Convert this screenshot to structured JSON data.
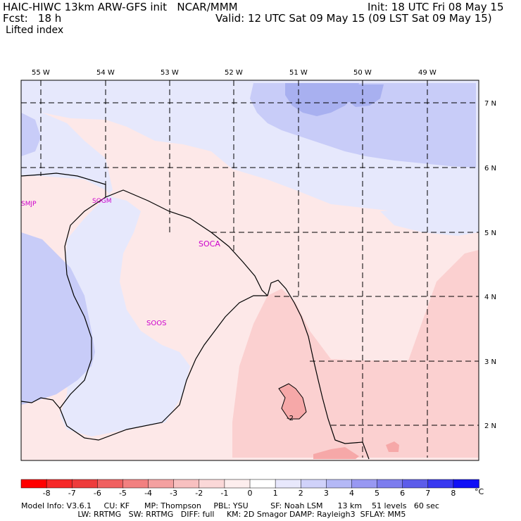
{
  "header": {
    "model": "HAIC-HIWC 13km ARW-GFS init   NCAR/MMM",
    "init": "Init: 18 UTC Fri 08 May 15",
    "fcst": "Fcst:   18 h",
    "valid": "Valid: 12 UTC Sat 09 May 15 (09 LST Sat 09 May 15)",
    "field": "Lifted index"
  },
  "map": {
    "lon_labels": [
      "55 W",
      "54 W",
      "53 W",
      "52 W",
      "51 W",
      "50 W",
      "49 W"
    ],
    "lat_labels": [
      "7 N",
      "6 N",
      "5 N",
      "4 N",
      "3 N",
      "2 N"
    ],
    "stations": [
      "SMJP",
      "SOGM",
      "SOCA",
      "SOOS"
    ],
    "contour_label": "-2",
    "colors": {
      "strong_blue": "#a8b0f0",
      "mid_blue": "#c8ccf8",
      "light_blue": "#e6e8fc",
      "light_pink": "#fde8e8",
      "pink": "#fbd0d0",
      "deeper_pink": "#f6a8a8",
      "border": "#000000",
      "station_text": "#cc00cc"
    }
  },
  "colorbar": {
    "colors": [
      "#ff0000",
      "#f62828",
      "#ee3c3c",
      "#f06060",
      "#f28080",
      "#f4a0a0",
      "#f8c0c0",
      "#fbd8d8",
      "#fdeeee",
      "#ffffff",
      "#e8e8fc",
      "#d0d2fa",
      "#b4b8f6",
      "#9898f2",
      "#7c7cee",
      "#5c5cea",
      "#3838f0",
      "#1010f6"
    ],
    "labels": [
      "-8",
      "-7",
      "-6",
      "-5",
      "-4",
      "-3",
      "-2",
      "-1",
      "0",
      "1",
      "2",
      "3",
      "4",
      "5",
      "6",
      "7",
      "8"
    ],
    "unit": "°C"
  },
  "footer": {
    "line1": "Model Info: V3.6.1     CU: KF      MP: Thompson     PBL: YSU         SF: Noah LSM      13 km    51 levels   60 sec",
    "line2": "                       LW: RRTMG   SW: RRTMG   DIFF: full     KM: 2D Smagor DAMP: Rayleigh3  SFLAY: MM5"
  }
}
